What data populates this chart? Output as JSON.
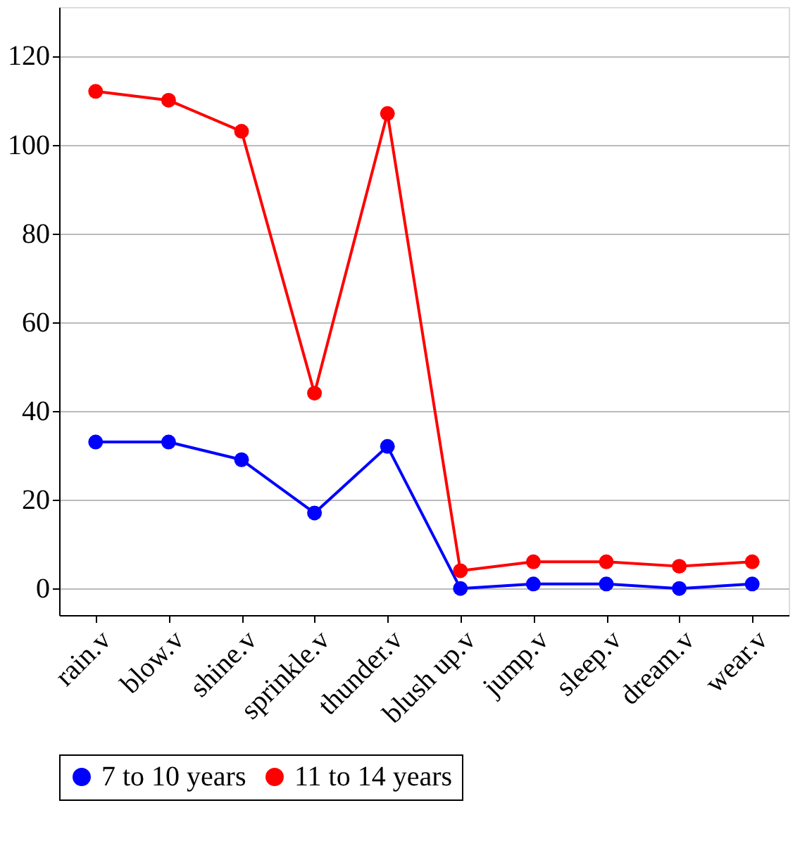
{
  "chart_data": {
    "type": "line",
    "categories": [
      "rain.v",
      "blow.v",
      "shine.v",
      "sprinkle.v",
      "thunder.v",
      "blush up.v",
      "jump.v",
      "sleep.v",
      "dream.v",
      "wear.v"
    ],
    "series": [
      {
        "name": "7 to 10 years",
        "color": "#0000ff",
        "values": [
          33,
          33,
          29,
          17,
          32,
          0,
          1,
          1,
          0,
          1
        ]
      },
      {
        "name": "11 to 14 years",
        "color": "#ff0000",
        "values": [
          112,
          110,
          103,
          44,
          107,
          4,
          6,
          6,
          5,
          6
        ]
      }
    ],
    "ylim": [
      -6,
      131
    ],
    "yticks": [
      0,
      20,
      40,
      60,
      80,
      100,
      120
    ],
    "grid": "y",
    "legend": "bottom",
    "marker": "circle",
    "line_style": "solid"
  }
}
